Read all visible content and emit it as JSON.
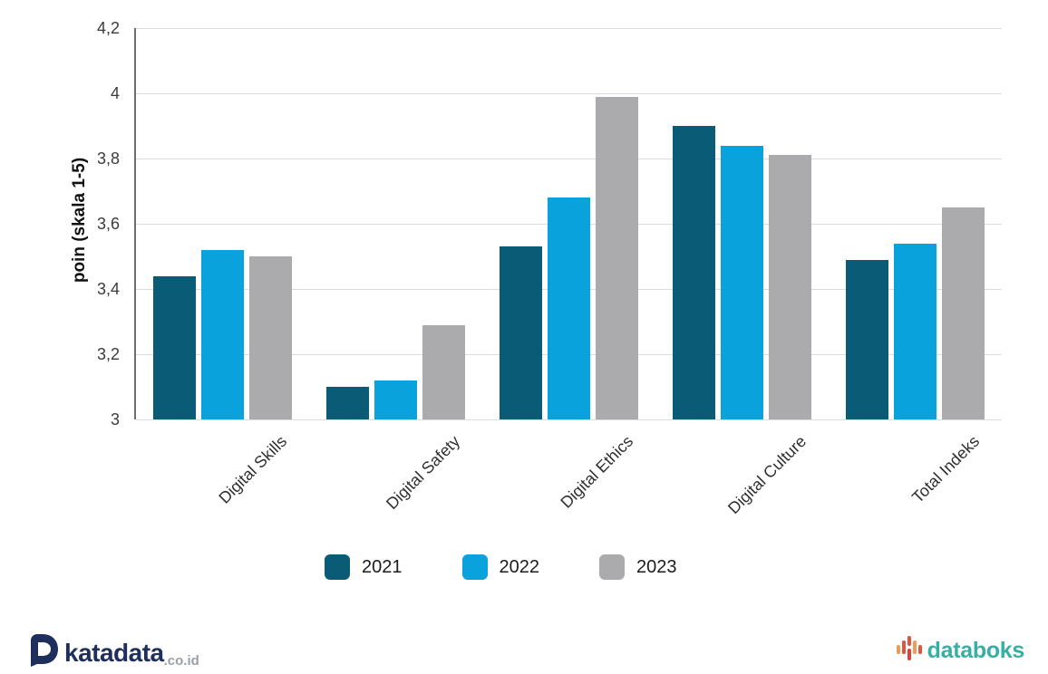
{
  "chart_data": {
    "type": "bar",
    "title": "",
    "xlabel": "",
    "ylabel": "poin (skala 1-5)",
    "ylim": [
      3,
      4.2
    ],
    "grid": "horizontal",
    "legend_position": "bottom",
    "ytick_values": [
      3,
      3.2,
      3.4,
      3.6,
      3.8,
      4,
      4.2
    ],
    "ytick_labels": [
      "3",
      "3,2",
      "3,4",
      "3,6",
      "3,8",
      "4",
      "4,2"
    ],
    "categories": [
      "Digital Skills",
      "Digital Safety",
      "Digital Ethics",
      "Digital Culture",
      "Total Indeks"
    ],
    "series": [
      {
        "name": "2021",
        "color": "#095b76",
        "values": [
          3.44,
          3.1,
          3.53,
          3.9,
          3.49
        ]
      },
      {
        "name": "2022",
        "color": "#09a2dc",
        "values": [
          3.52,
          3.12,
          3.68,
          3.84,
          3.54
        ]
      },
      {
        "name": "2023",
        "color": "#ababad",
        "values": [
          3.5,
          3.29,
          3.99,
          3.81,
          3.65
        ]
      }
    ]
  },
  "colors": {
    "gridline": "#dcdcdc",
    "axis_line": "#6e6e6e",
    "tick_text": "#3c3c3c",
    "katadata_navy": "#1f2f5c",
    "katadata_domain_gray": "#9aa0a8",
    "databoks_teal": "#38afa5",
    "databoks_icon_orange": "#f09b57",
    "databoks_icon_red": "#df5640"
  },
  "footer": {
    "katadata_wordmark": "katadata",
    "katadata_domain": ".co.id",
    "databoks_wordmark": "databoks"
  }
}
